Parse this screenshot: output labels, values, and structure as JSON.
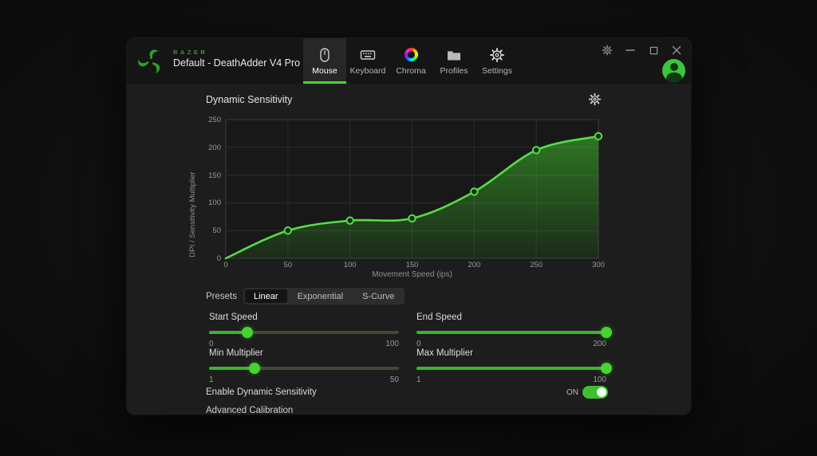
{
  "colors": {
    "accent": "#44d62c",
    "curve": "#55dd48",
    "grid": "#2c2c2c",
    "grid_edge": "#3a3a3a",
    "plot_bg": "#181818",
    "marker_fill": "#11300f",
    "window_bg": "#1d1d1d",
    "topbar_bg": "#151515"
  },
  "header": {
    "brand": "RAZER",
    "profile_name": "Default - DeathAdder V4 Pro",
    "tabs": [
      {
        "label": "Mouse",
        "icon": "mouse-icon",
        "active": true
      },
      {
        "label": "Keyboard",
        "icon": "keyboard-icon",
        "active": false
      },
      {
        "label": "Chroma",
        "icon": "chroma-ring-icon",
        "active": false
      },
      {
        "label": "Profiles",
        "icon": "folder-icon",
        "active": false
      },
      {
        "label": "Settings",
        "icon": "gear-icon",
        "active": false
      }
    ],
    "titlebar_icons": [
      "gear-icon",
      "minimize-icon",
      "maximize-icon",
      "close-icon",
      "user-avatar"
    ]
  },
  "main": {
    "title": "Dynamic Sensitivity",
    "title_icon": "gear-icon",
    "presets": {
      "label": "Presets",
      "options": [
        {
          "label": "Linear",
          "active": true
        },
        {
          "label": "Exponential",
          "active": false
        },
        {
          "label": "S-Curve",
          "active": false
        }
      ]
    },
    "sliders": [
      {
        "label": "Start Speed",
        "min": "0",
        "max": "100",
        "percent": 20
      },
      {
        "label": "End Speed",
        "min": "0",
        "max": "200",
        "percent": 100
      },
      {
        "label": "Min Multiplier",
        "min": "1",
        "max": "50",
        "percent": 24
      },
      {
        "label": "Max Multiplier",
        "min": "1",
        "max": "100",
        "percent": 100
      }
    ],
    "toggle": {
      "label": "Enable Dynamic Sensitivity",
      "state": "ON",
      "on": true
    },
    "clipped_row_label": "Advanced Calibration"
  },
  "chart_data": {
    "type": "line",
    "x": [
      0,
      50,
      100,
      150,
      200,
      250,
      300
    ],
    "values": [
      0,
      50,
      68,
      72,
      120,
      195,
      220
    ],
    "title": "Dynamic Sensitivity",
    "xlabel": "Movement Speed (ips)",
    "ylabel": "DPI / Sensitivity Multiplier",
    "xlim": [
      0,
      300
    ],
    "ylim": [
      0,
      250
    ],
    "xticks": [
      0,
      50,
      100,
      150,
      200,
      250,
      300
    ],
    "yticks": [
      0,
      50,
      100,
      150,
      200,
      250
    ],
    "grid": true,
    "legend": "none",
    "style": "smooth line with circular control-point markers and green area gradient fill"
  }
}
